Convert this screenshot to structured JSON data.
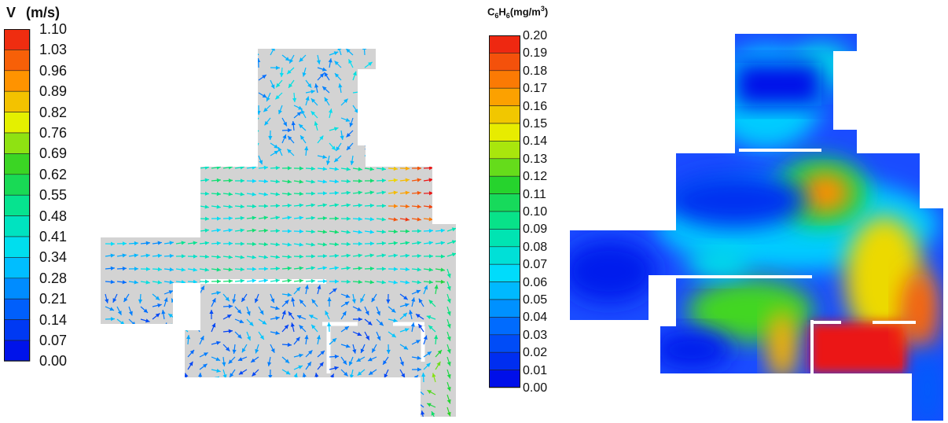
{
  "left_legend": {
    "title_symbol": "V",
    "title_unit": "(m/s)",
    "ticks": [
      "1.10",
      "1.03",
      "0.96",
      "0.89",
      "0.82",
      "0.76",
      "0.69",
      "0.62",
      "0.55",
      "0.48",
      "0.41",
      "0.34",
      "0.28",
      "0.21",
      "0.14",
      "0.07",
      "0.00"
    ]
  },
  "right_legend": {
    "title": "C",
    "title_sub1": "6",
    "title_mid": "H",
    "title_sub2": "6",
    "title_unit": "(mg/m",
    "title_sup": "3",
    "title_close": ")",
    "ticks": [
      "0.20",
      "0.19",
      "0.18",
      "0.17",
      "0.16",
      "0.15",
      "0.14",
      "0.13",
      "0.12",
      "0.11",
      "0.10",
      "0.09",
      "0.08",
      "0.07",
      "0.06",
      "0.05",
      "0.04",
      "0.03",
      "0.02",
      "0.01",
      "0.00"
    ]
  },
  "chart_data": [
    {
      "type": "vector-field",
      "title": "",
      "colorbar": {
        "label": "V (m/s)",
        "min": 0.0,
        "max": 1.1,
        "colormap": "rainbow"
      }
    },
    {
      "type": "contour",
      "title": "",
      "colorbar": {
        "label": "C6H6(mg/m3)",
        "min": 0.0,
        "max": 0.2,
        "colormap": "rainbow"
      }
    }
  ],
  "colors": {
    "room_fill": "#d3d3d3",
    "scale_low": "#0000ff",
    "scale_high": "#ff0000"
  }
}
